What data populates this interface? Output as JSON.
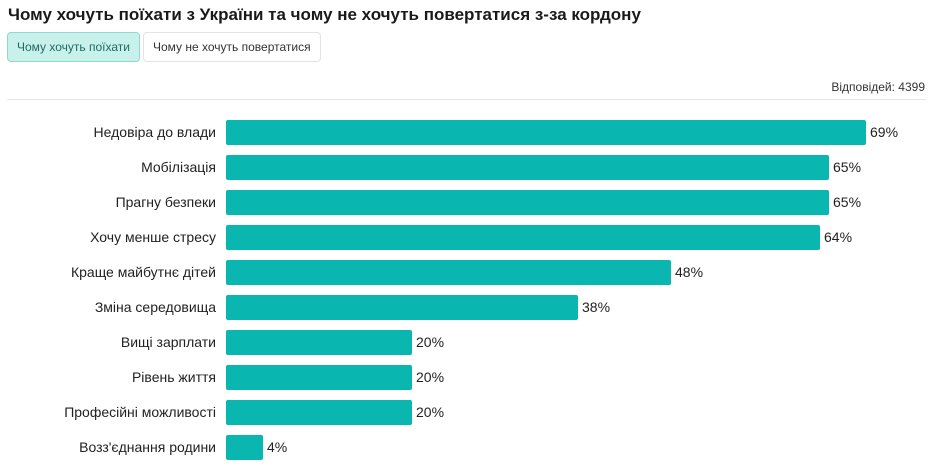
{
  "header": {
    "title": "Чому хочуть поїхати з України та чому не хочуть повертатися з-за кордону"
  },
  "tabs": [
    {
      "label": "Чому хочуть поїхати",
      "active": true
    },
    {
      "label": "Чому не хочуть повертатися",
      "active": false
    }
  ],
  "responses_label": "Відповідей: 4399",
  "colors": {
    "bar": "#09b7b0",
    "active_tab_bg": "#c9f1ec"
  },
  "chart_data": {
    "type": "bar",
    "orientation": "horizontal",
    "categories": [
      "Недовіра до влади",
      "Мобілізація",
      "Прагну безпеки",
      "Хочу менше стресу",
      "Краще майбутнє дітей",
      "Зміна середовища",
      "Вищі зарплати",
      "Рівень життя",
      "Професійні можливості",
      "Возз'єднання родини"
    ],
    "values": [
      69,
      65,
      65,
      64,
      48,
      38,
      20,
      20,
      20,
      4
    ],
    "value_labels": [
      "69%",
      "65%",
      "65%",
      "64%",
      "48%",
      "38%",
      "20%",
      "20%",
      "20%",
      "4%"
    ],
    "unit": "%",
    "xlim": [
      0,
      69
    ],
    "grid": false,
    "legend": false
  }
}
